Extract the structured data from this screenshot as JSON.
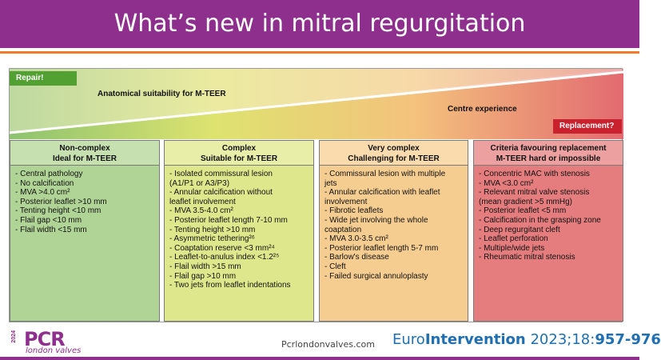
{
  "header": {
    "title": "What’s new in mitral regurgitation"
  },
  "figure": {
    "repair_label": "Repair!",
    "replacement_label": "Replacement?",
    "anatomical_label": "Anatomical suitability for M-TEER",
    "centre_label": "Centre experience",
    "colors": {
      "green": "#8cc36f",
      "yellow": "#dde36f",
      "orange": "#f4c27d",
      "red": "#e26a70"
    },
    "columns": [
      {
        "title_line1": "Non-complex",
        "title_line2": "Ideal for M-TEER",
        "items": [
          "- Central pathology",
          "- No calcification",
          "- MVA >4.0 cm²",
          "- Posterior leaflet >10 mm",
          "- Tenting height <10 mm",
          "- Flail gap <10 mm",
          "- Flail width <15 mm"
        ]
      },
      {
        "title_line1": "Complex",
        "title_line2": "Suitable for M-TEER",
        "items": [
          "- Isolated commissural lesion",
          "  (A1/P1 or A3/P3)",
          "- Annular calcification without",
          "  leaflet involvement",
          "- MVA 3.5-4.0 cm²",
          "- Posterior leaflet length 7-10 mm",
          "- Tenting height >10 mm",
          "- Asymmetric tethering²⁶",
          "- Coaptation reserve <3 mm²⁴",
          "- Leaflet-to-anulus index <1.2²⁵",
          "- Flail width >15 mm",
          "- Flail gap >10 mm",
          "- Two jets from leaflet indentations"
        ]
      },
      {
        "title_line1": "Very complex",
        "title_line2": "Challenging for M-TEER",
        "items": [
          "- Commissural lesion with multiple",
          "  jets",
          "- Annular calcification with leaflet",
          "  involvement",
          "- Fibrotic leaflets",
          "- Wide jet involving the whole",
          "  coaptation",
          "- MVA 3.0-3.5 cm²",
          "- Posterior leaflet length 5-7 mm",
          "- Barlow's disease",
          "- Cleft",
          "- Failed surgical annuloplasty"
        ]
      },
      {
        "title_line1": "Criteria favouring replacement",
        "title_line2": "M-TEER hard or impossible",
        "items": [
          "- Concentric MAC with stenosis",
          "- MVA <3.0 cm²",
          "- Relevant mitral valve stenosis",
          "  (mean gradient >5 mmHg)",
          "- Posterior leaflet <5 mm",
          "- Calcification in the grasping zone",
          "- Deep regurgitant cleft",
          "- Leaflet perforation",
          "- Multiple/wide jets",
          "- Rheumatic mitral stenosis"
        ]
      }
    ]
  },
  "footer": {
    "year": "2024",
    "brand": "PCR",
    "brand_sub": "london valves",
    "url": "Pcrlondonvalves.com",
    "citation_prefix": "Euro",
    "citation_bold": "Intervention",
    "citation_middle": " 2023;18:",
    "citation_pages": "957-976"
  },
  "brand_colors": {
    "purple": "#8e2f8e",
    "orange": "#f07b28",
    "blue": "#1f6fb2"
  }
}
